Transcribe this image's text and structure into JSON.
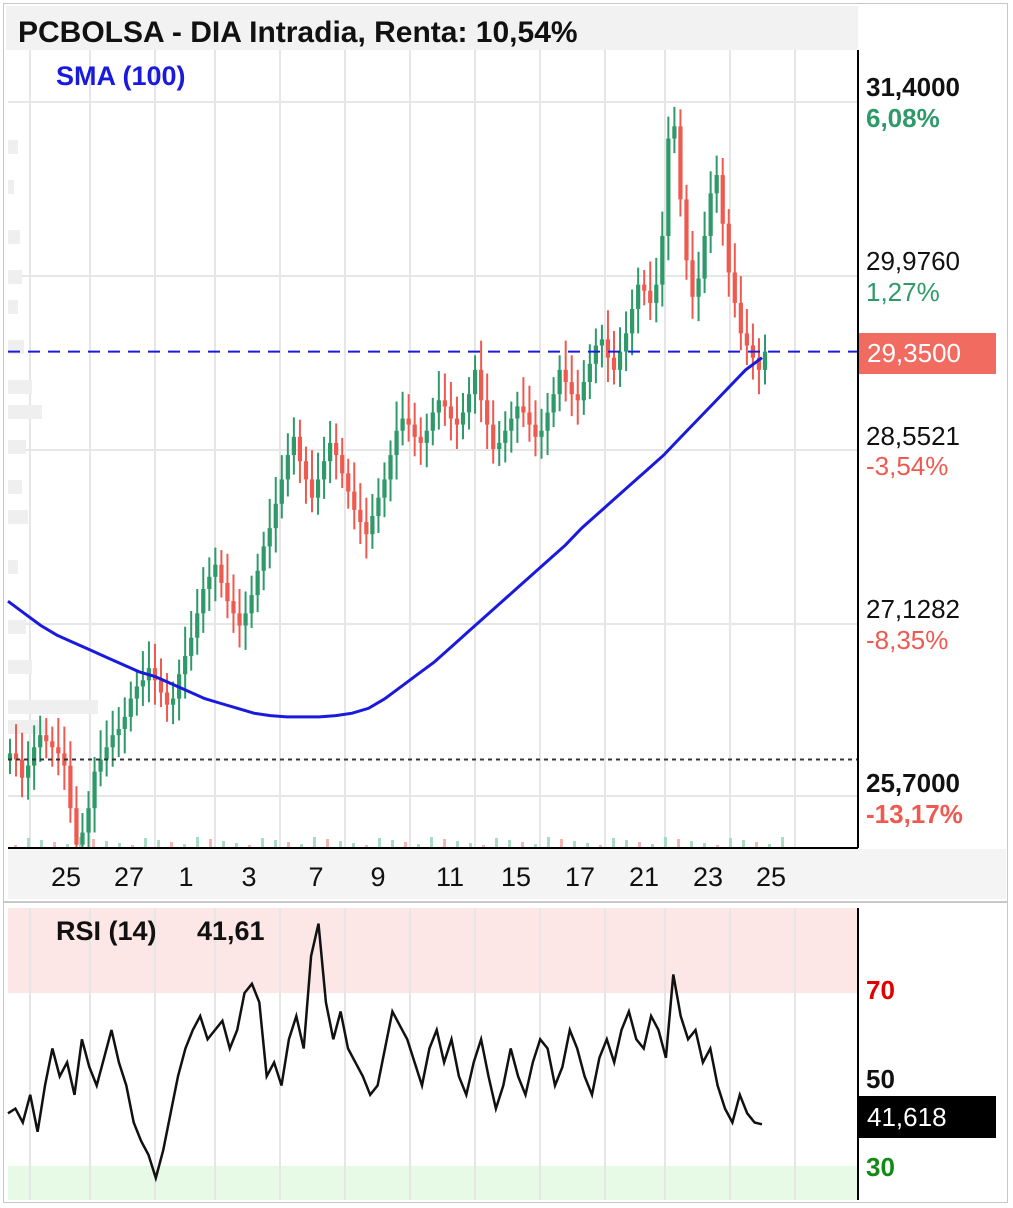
{
  "title": "PCBOLSA - DIA Intradia, Renta: 10,54%",
  "indicator": {
    "sma_label": "SMA (100)"
  },
  "price_axis": [
    {
      "price": "31,4000",
      "pct": "6,08%",
      "pct_sign": "pos",
      "bold": true
    },
    {
      "price": "29,9760",
      "pct": "1,27%",
      "pct_sign": "pos",
      "bold": false
    },
    {
      "price": "28,5521",
      "pct": "-3,54%",
      "pct_sign": "neg",
      "bold": false
    },
    {
      "price": "27,1282",
      "pct": "-8,35%",
      "pct_sign": "neg",
      "bold": false
    },
    {
      "price": "25,7000",
      "pct": "-13,17%",
      "pct_sign": "neg",
      "bold": true
    }
  ],
  "current_price": "29,3500",
  "x_axis": [
    "25",
    "27",
    "1",
    "3",
    "7",
    "9",
    "11",
    "15",
    "17",
    "21",
    "23",
    "25"
  ],
  "rsi": {
    "label": "RSI (14)",
    "value": "41,61",
    "badge": "41,618",
    "levels": [
      "70",
      "50",
      "30"
    ]
  },
  "colors": {
    "up": "#2e9a6a",
    "down": "#ef5a50",
    "sma": "#1a1adc",
    "overbought_zone": "#fde6e6",
    "oversold_zone": "#e6fae6"
  },
  "chart_data": [
    {
      "type": "candlestick",
      "title": "PCBOLSA - DIA Intradia, Renta: 10,54%",
      "ylim": [
        25.7,
        31.4
      ],
      "reference_price": 26.0,
      "last_price": 29.35,
      "x_ticks": [
        "25",
        "27",
        "1",
        "3",
        "7",
        "9",
        "11",
        "15",
        "17",
        "21",
        "23",
        "25"
      ],
      "series": [
        {
          "name": "PCBOLSA",
          "close": [
            26.05,
            26.0,
            25.85,
            25.95,
            26.1,
            26.2,
            26.15,
            26.1,
            26.05,
            25.95,
            25.6,
            25.3,
            25.4,
            25.6,
            25.9,
            26.0,
            26.1,
            26.2,
            26.25,
            26.35,
            26.5,
            26.6,
            26.65,
            26.75,
            26.65,
            26.55,
            26.45,
            26.5,
            26.7,
            26.85,
            27.0,
            27.2,
            27.4,
            27.5,
            27.6,
            27.45,
            27.3,
            27.2,
            27.1,
            27.2,
            27.35,
            27.55,
            27.75,
            27.9,
            28.1,
            28.3,
            28.5,
            28.65,
            28.45,
            28.3,
            28.15,
            28.3,
            28.45,
            28.6,
            28.5,
            28.35,
            28.2,
            28.05,
            27.95,
            27.85,
            28.0,
            28.15,
            28.3,
            28.5,
            28.7,
            28.8,
            28.75,
            28.65,
            28.6,
            28.7,
            28.85,
            28.95,
            28.9,
            28.8,
            28.75,
            28.85,
            29.0,
            29.2,
            28.95,
            28.75,
            28.55,
            28.6,
            28.7,
            28.8,
            28.9,
            28.85,
            28.75,
            28.65,
            28.7,
            28.85,
            29.0,
            29.2,
            29.1,
            29.0,
            28.95,
            29.1,
            29.25,
            29.4,
            29.45,
            29.3,
            29.2,
            29.35,
            29.5,
            29.7,
            29.9,
            29.85,
            29.75,
            29.9,
            30.3,
            31.1,
            31.2,
            30.6,
            30.1,
            29.8,
            29.95,
            30.3,
            30.65,
            30.8,
            30.4,
            30.0,
            29.75,
            29.5,
            29.4,
            29.3,
            29.2,
            29.35
          ]
        },
        {
          "name": "SMA (100)",
          "values": [
            27.3,
            27.2,
            27.1,
            27.02,
            26.96,
            26.9,
            26.84,
            26.78,
            26.72,
            26.68,
            26.62,
            26.56,
            26.5,
            26.46,
            26.42,
            26.38,
            26.36,
            26.35,
            26.35,
            26.35,
            26.36,
            26.38,
            26.42,
            26.5,
            26.6,
            26.7,
            26.8,
            26.92,
            27.04,
            27.16,
            27.28,
            27.4,
            27.52,
            27.64,
            27.76,
            27.9,
            28.02,
            28.14,
            28.26,
            28.38,
            28.5,
            28.64,
            28.78,
            28.92,
            29.06,
            29.2,
            29.3
          ]
        }
      ]
    },
    {
      "type": "line",
      "title": "RSI (14)",
      "ylim": [
        20,
        90
      ],
      "guide_levels": [
        70,
        50,
        30
      ],
      "series": [
        {
          "name": "RSI (14)",
          "values": [
            44,
            45,
            42,
            48,
            40,
            50,
            58,
            52,
            55,
            48,
            60,
            54,
            50,
            56,
            62,
            55,
            50,
            42,
            38,
            35,
            30,
            36,
            44,
            52,
            58,
            62,
            65,
            60,
            62,
            64,
            58,
            62,
            70,
            72,
            68,
            52,
            55,
            50,
            60,
            65,
            58,
            78,
            85,
            68,
            60,
            66,
            58,
            55,
            52,
            48,
            50,
            58,
            66,
            63,
            60,
            55,
            50,
            58,
            62,
            55,
            60,
            52,
            48,
            55,
            60,
            52,
            45,
            50,
            58,
            52,
            48,
            55,
            60,
            58,
            50,
            54,
            62,
            58,
            52,
            48,
            56,
            60,
            55,
            62,
            66,
            60,
            58,
            65,
            62,
            56,
            74,
            65,
            60,
            62,
            55,
            58,
            50,
            45,
            42,
            48,
            44,
            42,
            41.61
          ]
        }
      ]
    }
  ]
}
